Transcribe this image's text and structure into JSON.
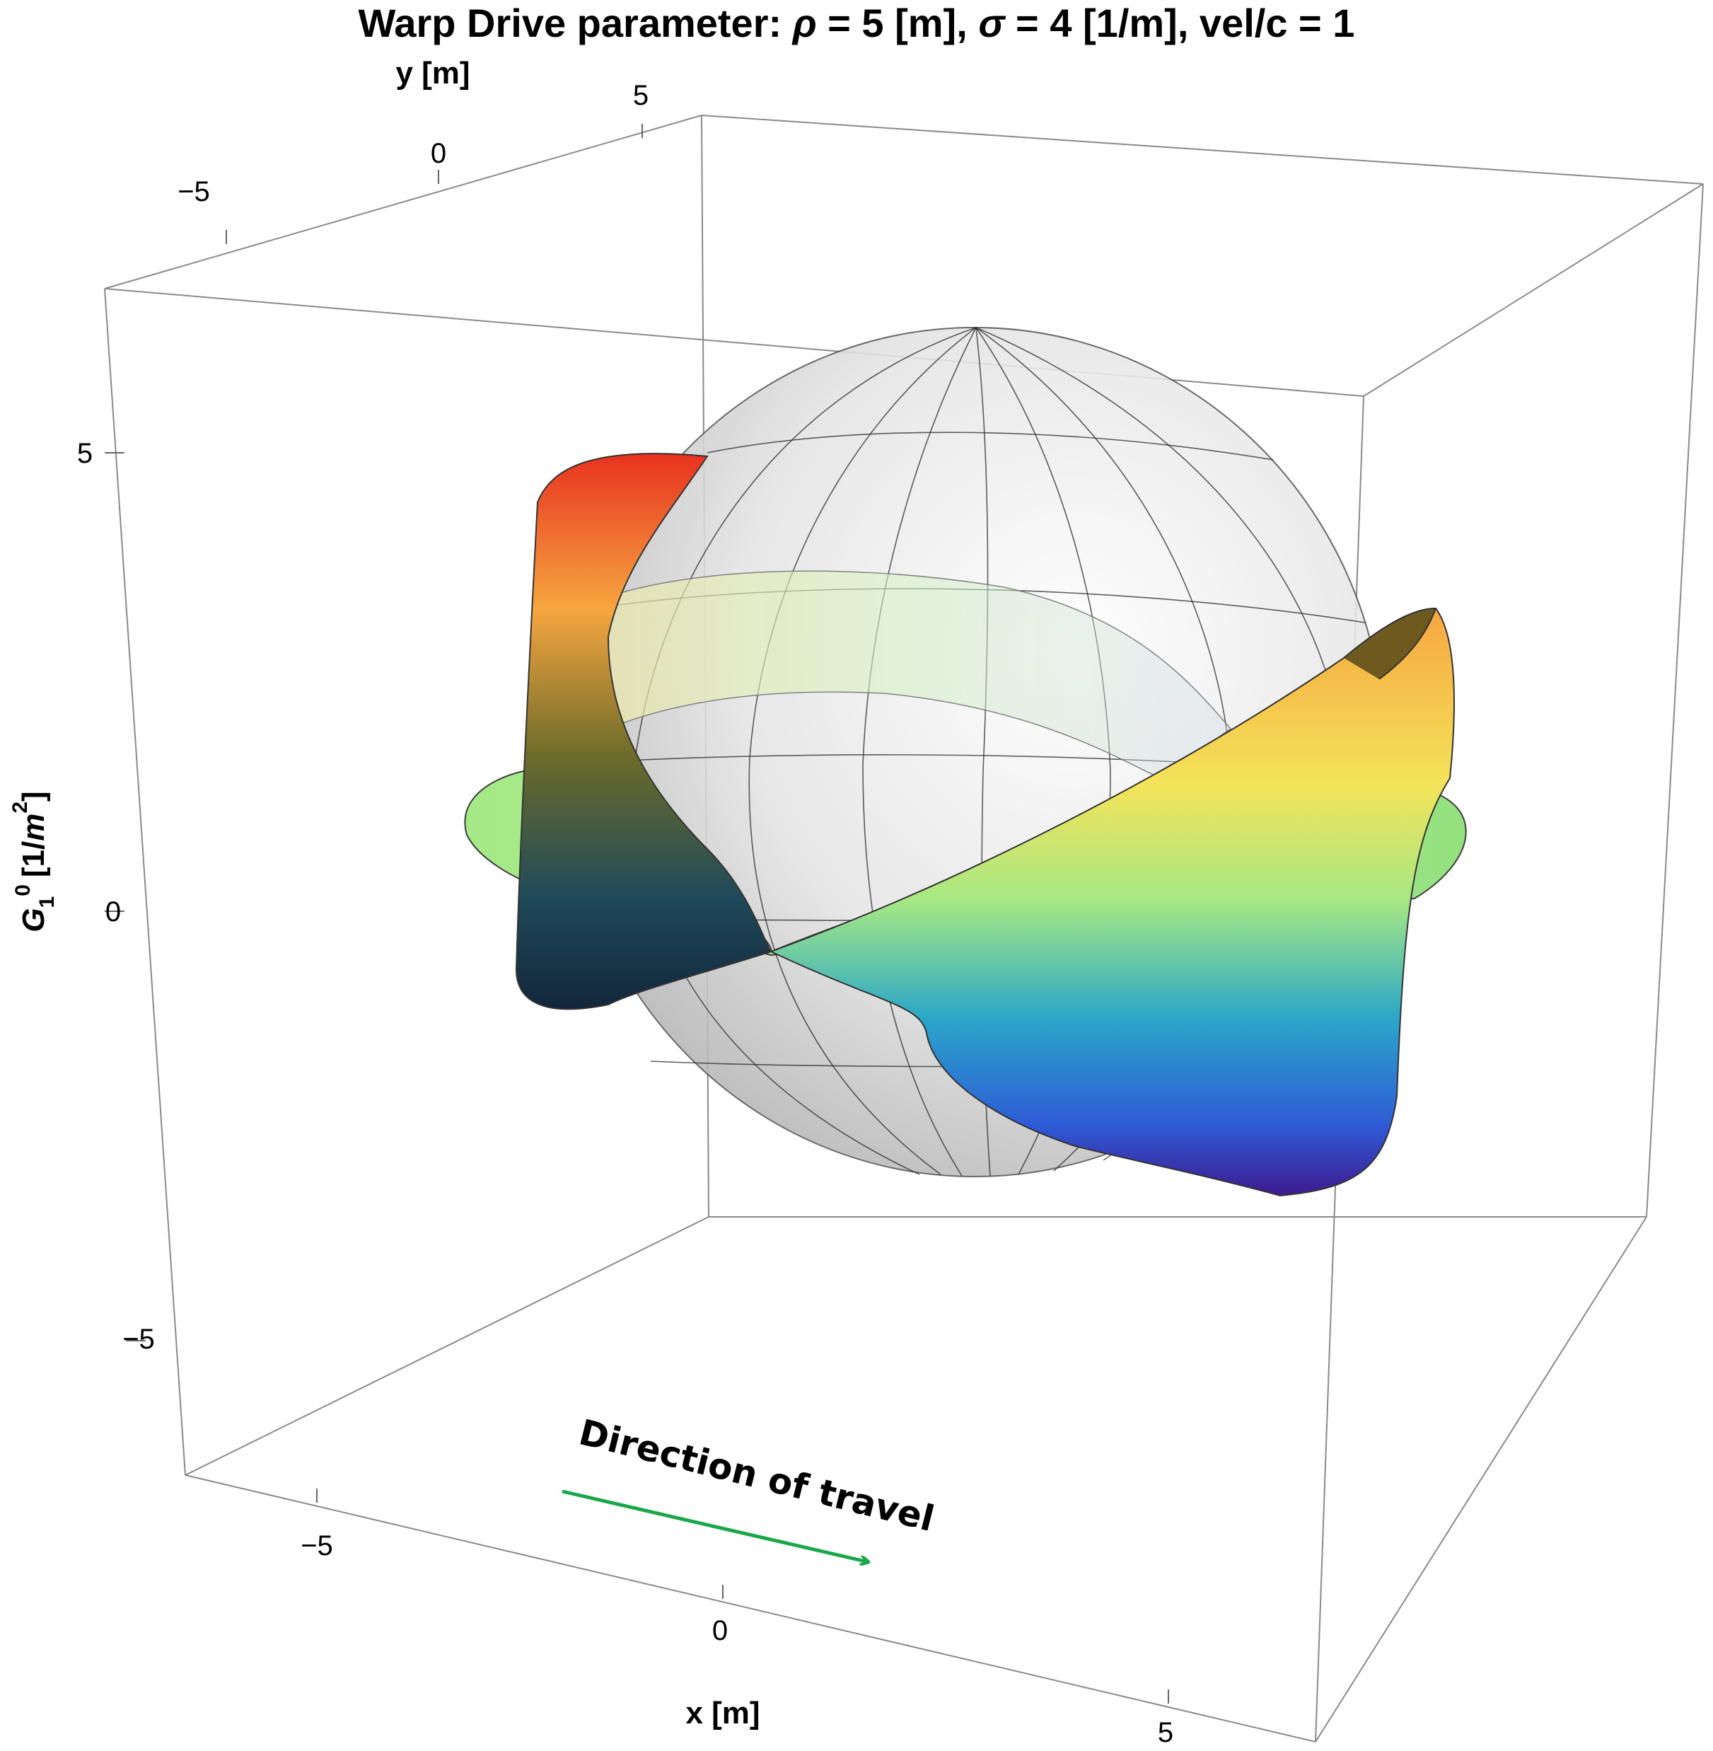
{
  "chart_data": {
    "type": "3d-surface",
    "title": "Warp Drive parameter: ρ = 5 [m], σ = 4 [1/m], vel/c = 1",
    "title_parts": {
      "prefix": "Warp Drive parameter: ",
      "rho_symbol": "ρ",
      "rho_value": " = 5 [m], ",
      "sigma_symbol": "σ",
      "sigma_value": " = 4 [1/m], vel/c = 1"
    },
    "parameters": {
      "rho": 5,
      "sigma": 4,
      "velocity_over_c": 1
    },
    "axes": {
      "x": {
        "label": "x [m]",
        "ticks": [
          -5,
          0,
          5
        ],
        "tick_labels": [
          "−5",
          "0",
          "5"
        ]
      },
      "y": {
        "label": "y [m]",
        "ticks": [
          -5,
          0,
          5
        ],
        "tick_labels": [
          "−5",
          "0",
          "5"
        ]
      },
      "z": {
        "label": "G₁⁰ [1/m²]",
        "label_parts": {
          "base": "G",
          "sub": "1",
          "sup": "0",
          "unit_open": "[1/",
          "unit_var": "m",
          "unit_exp": "2",
          "unit_close": "]"
        },
        "ticks": [
          -5,
          0,
          5
        ],
        "tick_labels": [
          "−5",
          "0",
          "5"
        ]
      }
    },
    "annotation": {
      "text": "Direction of travel",
      "arrow_color": "#1aa64a"
    },
    "colormap": [
      "#3d1a8f",
      "#2f5bd6",
      "#2aa6c9",
      "#9fe87f",
      "#f4e35a",
      "#f6a640",
      "#e8321f"
    ],
    "sphere_color": "#d9d9d9"
  }
}
